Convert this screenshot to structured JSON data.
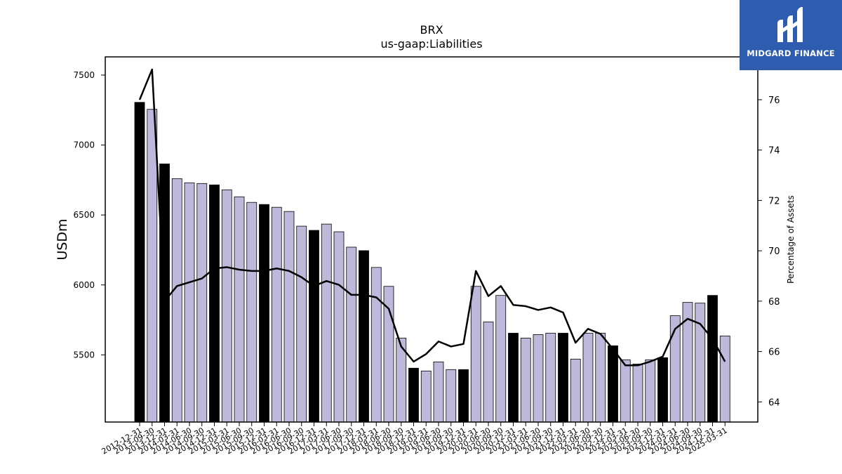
{
  "brand": {
    "name": "MIDGARD FINANCE"
  },
  "chart_data": {
    "type": "bar",
    "title": "BRX",
    "subtitle": "us-gaap:Liabilities",
    "ylabel": "USDm",
    "y2label": "Percentage of Assets",
    "ylim": [
      5020,
      7630
    ],
    "y2lim": [
      63.2,
      77.7
    ],
    "yticks": [
      5500,
      6000,
      6500,
      7000,
      7500
    ],
    "y2ticks": [
      64,
      66,
      68,
      70,
      72,
      74,
      76
    ],
    "categories": [
      "2012-12-31",
      "2013-09-30",
      "2013-12-31",
      "2014-03-31",
      "2014-06-30",
      "2014-09-30",
      "2014-12-31",
      "2015-03-31",
      "2015-06-30",
      "2015-09-30",
      "2015-12-31",
      "2016-03-31",
      "2016-06-30",
      "2016-09-30",
      "2016-12-31",
      "2017-03-31",
      "2017-06-30",
      "2017-09-30",
      "2017-12-31",
      "2018-03-31",
      "2018-06-30",
      "2018-09-30",
      "2018-12-31",
      "2019-03-31",
      "2019-06-30",
      "2019-09-30",
      "2019-12-31",
      "2020-03-31",
      "2020-06-30",
      "2020-09-30",
      "2020-12-31",
      "2021-03-31",
      "2021-06-30",
      "2021-09-30",
      "2021-12-31",
      "2022-03-31",
      "2022-06-30",
      "2022-09-30",
      "2022-12-31",
      "2023-03-31",
      "2023-06-30",
      "2023-09-30",
      "2023-12-31",
      "2024-03-31",
      "2024-06-30",
      "2024-09-30",
      "2024-12-31",
      "2025-03-31"
    ],
    "series": [
      {
        "kind": "bar",
        "values": [
          7305,
          7255,
          6865,
          6760,
          6730,
          6725,
          6715,
          6680,
          6630,
          6590,
          6575,
          6555,
          6525,
          6420,
          6390,
          6435,
          6380,
          6270,
          6245,
          6125,
          5990,
          5620,
          5405,
          5385,
          5450,
          5395,
          5395,
          5990,
          5735,
          5925,
          5655,
          5620,
          5645,
          5655,
          5655,
          5470,
          5655,
          5655,
          5565,
          5465,
          5435,
          5465,
          5480,
          5780,
          5875,
          5870,
          5925,
          5635
        ],
        "highlight": [
          true,
          false,
          true,
          false,
          false,
          false,
          true,
          false,
          false,
          false,
          true,
          false,
          false,
          false,
          true,
          false,
          false,
          false,
          true,
          false,
          false,
          false,
          true,
          false,
          false,
          false,
          true,
          false,
          false,
          false,
          true,
          false,
          false,
          false,
          true,
          false,
          false,
          false,
          true,
          false,
          false,
          false,
          true,
          false,
          false,
          false,
          true,
          false
        ]
      },
      {
        "kind": "line",
        "values": [
          76.0,
          77.2,
          68.0,
          68.6,
          68.75,
          68.9,
          69.3,
          69.35,
          69.25,
          69.2,
          69.2,
          69.3,
          69.2,
          68.95,
          68.6,
          68.8,
          68.65,
          68.25,
          68.25,
          68.15,
          67.7,
          66.2,
          65.6,
          65.9,
          66.4,
          66.2,
          66.3,
          69.2,
          68.2,
          68.6,
          67.85,
          67.8,
          67.65,
          67.75,
          67.55,
          66.35,
          66.9,
          66.7,
          66.1,
          65.45,
          65.45,
          65.6,
          65.8,
          66.9,
          67.3,
          67.1,
          66.5,
          65.6
        ]
      }
    ],
    "colors": {
      "bar": "#bcb9db",
      "highlight": "#000000",
      "line": "#000000"
    }
  }
}
